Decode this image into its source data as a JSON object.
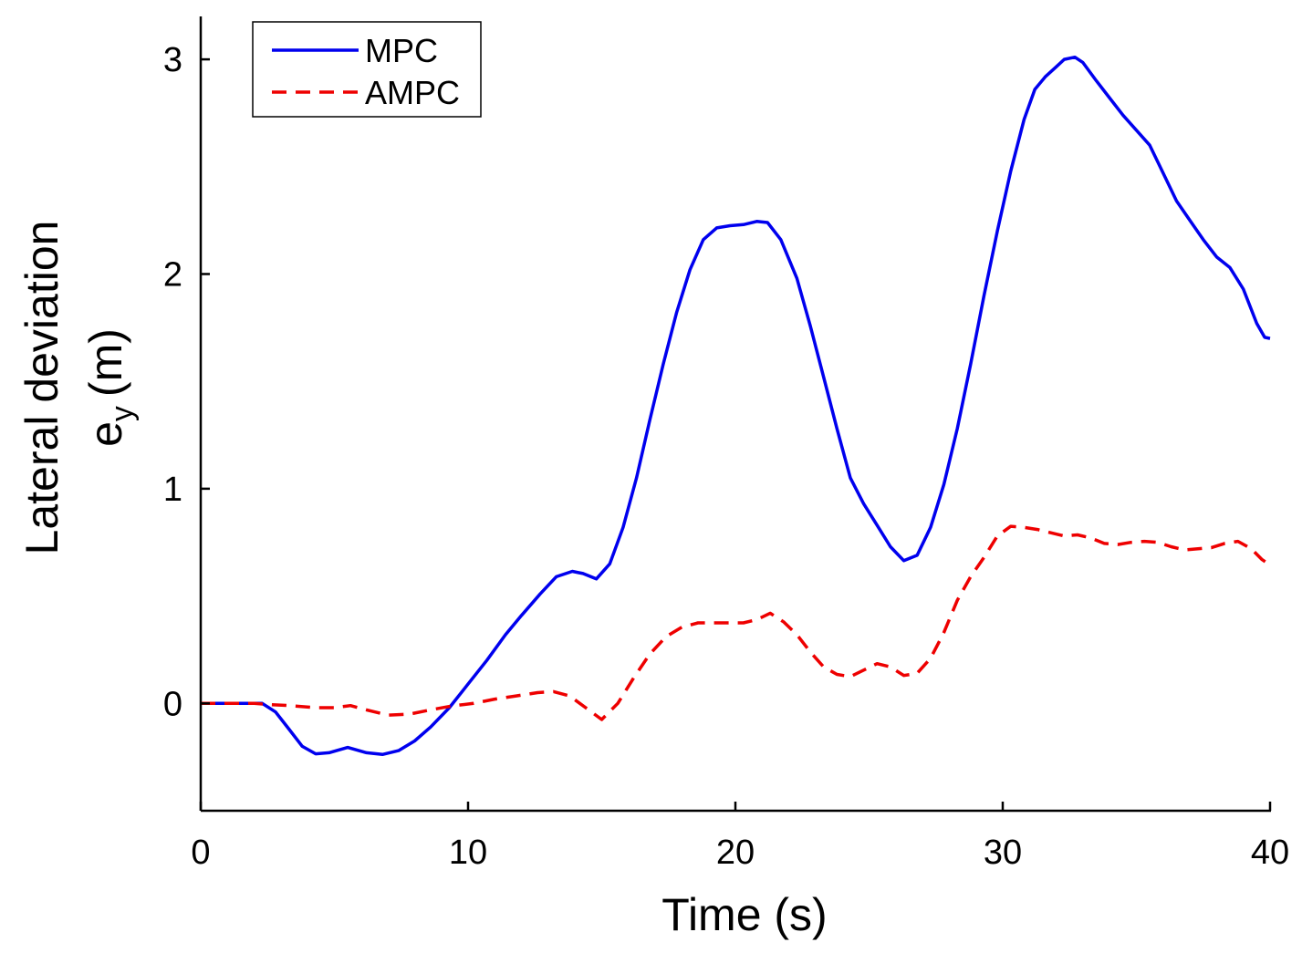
{
  "chart_data": {
    "type": "line",
    "title": "",
    "xlabel": "Time (s)",
    "ylabel_line1": "Lateral deviation",
    "ylabel_line2_main": "e",
    "ylabel_line2_sub": "y",
    "ylabel_line2_unit": "(m)",
    "xlim": [
      0,
      40
    ],
    "ylim": [
      -0.5,
      3.2
    ],
    "xticks": [
      0,
      10,
      20,
      30,
      40
    ],
    "xtick_labels": [
      "0",
      "10",
      "20",
      "30",
      "40"
    ],
    "yticks": [
      0,
      1,
      2,
      3
    ],
    "ytick_labels": [
      "0",
      "1",
      "2",
      "3"
    ],
    "grid": false,
    "legend_position": "top-left",
    "series": [
      {
        "name": "MPC",
        "color": "#0000ee",
        "style": "solid",
        "points": [
          [
            0,
            0
          ],
          [
            1,
            0
          ],
          [
            2,
            0
          ],
          [
            2.3,
            0
          ],
          [
            2.8,
            -0.04
          ],
          [
            3.3,
            -0.12
          ],
          [
            3.8,
            -0.2
          ],
          [
            4.3,
            -0.235
          ],
          [
            4.8,
            -0.23
          ],
          [
            5.5,
            -0.205
          ],
          [
            6.2,
            -0.23
          ],
          [
            6.8,
            -0.238
          ],
          [
            7.4,
            -0.22
          ],
          [
            8.0,
            -0.175
          ],
          [
            8.6,
            -0.11
          ],
          [
            9.3,
            -0.02
          ],
          [
            10.0,
            0.09
          ],
          [
            10.7,
            0.2
          ],
          [
            11.4,
            0.32
          ],
          [
            12.0,
            0.41
          ],
          [
            12.7,
            0.51
          ],
          [
            13.3,
            0.59
          ],
          [
            13.9,
            0.615
          ],
          [
            14.3,
            0.605
          ],
          [
            14.8,
            0.58
          ],
          [
            15.3,
            0.65
          ],
          [
            15.8,
            0.82
          ],
          [
            16.3,
            1.05
          ],
          [
            16.8,
            1.32
          ],
          [
            17.3,
            1.58
          ],
          [
            17.8,
            1.82
          ],
          [
            18.3,
            2.02
          ],
          [
            18.8,
            2.16
          ],
          [
            19.3,
            2.215
          ],
          [
            19.8,
            2.225
          ],
          [
            20.3,
            2.23
          ],
          [
            20.8,
            2.245
          ],
          [
            21.2,
            2.24
          ],
          [
            21.7,
            2.16
          ],
          [
            22.3,
            1.98
          ],
          [
            22.8,
            1.76
          ],
          [
            23.3,
            1.52
          ],
          [
            23.8,
            1.28
          ],
          [
            24.3,
            1.05
          ],
          [
            24.8,
            0.93
          ],
          [
            25.3,
            0.83
          ],
          [
            25.8,
            0.73
          ],
          [
            26.3,
            0.665
          ],
          [
            26.8,
            0.69
          ],
          [
            27.3,
            0.82
          ],
          [
            27.8,
            1.02
          ],
          [
            28.3,
            1.28
          ],
          [
            28.8,
            1.58
          ],
          [
            29.3,
            1.9
          ],
          [
            29.8,
            2.2
          ],
          [
            30.3,
            2.48
          ],
          [
            30.8,
            2.72
          ],
          [
            31.2,
            2.86
          ],
          [
            31.6,
            2.92
          ],
          [
            32.0,
            2.965
          ],
          [
            32.3,
            3.0
          ],
          [
            32.7,
            3.01
          ],
          [
            33.0,
            2.985
          ],
          [
            33.5,
            2.9
          ],
          [
            34.0,
            2.82
          ],
          [
            34.5,
            2.74
          ],
          [
            35.0,
            2.67
          ],
          [
            35.5,
            2.6
          ],
          [
            36.0,
            2.47
          ],
          [
            36.5,
            2.34
          ],
          [
            37.0,
            2.25
          ],
          [
            37.5,
            2.16
          ],
          [
            38.0,
            2.08
          ],
          [
            38.5,
            2.03
          ],
          [
            39.0,
            1.93
          ],
          [
            39.5,
            1.77
          ],
          [
            39.8,
            1.705
          ],
          [
            40,
            1.7
          ]
        ]
      },
      {
        "name": "AMPC",
        "color": "#ee0000",
        "style": "dashed",
        "points": [
          [
            0,
            0
          ],
          [
            1,
            0
          ],
          [
            2,
            0
          ],
          [
            2.5,
            -0.005
          ],
          [
            3.3,
            -0.01
          ],
          [
            4.3,
            -0.02
          ],
          [
            5.0,
            -0.02
          ],
          [
            5.6,
            -0.01
          ],
          [
            6.2,
            -0.03
          ],
          [
            7.0,
            -0.055
          ],
          [
            7.8,
            -0.05
          ],
          [
            8.6,
            -0.03
          ],
          [
            9.4,
            -0.012
          ],
          [
            10.2,
            0.0
          ],
          [
            11.0,
            0.02
          ],
          [
            11.8,
            0.035
          ],
          [
            12.6,
            0.05
          ],
          [
            13.2,
            0.055
          ],
          [
            13.8,
            0.035
          ],
          [
            14.4,
            -0.02
          ],
          [
            15.0,
            -0.075
          ],
          [
            15.6,
            0.0
          ],
          [
            16.2,
            0.12
          ],
          [
            16.8,
            0.23
          ],
          [
            17.4,
            0.31
          ],
          [
            18.0,
            0.355
          ],
          [
            18.6,
            0.375
          ],
          [
            19.2,
            0.375
          ],
          [
            19.8,
            0.375
          ],
          [
            20.3,
            0.375
          ],
          [
            20.8,
            0.39
          ],
          [
            21.3,
            0.42
          ],
          [
            21.8,
            0.38
          ],
          [
            22.3,
            0.32
          ],
          [
            22.8,
            0.24
          ],
          [
            23.3,
            0.17
          ],
          [
            23.8,
            0.135
          ],
          [
            24.3,
            0.125
          ],
          [
            24.8,
            0.155
          ],
          [
            25.3,
            0.185
          ],
          [
            25.8,
            0.17
          ],
          [
            26.3,
            0.13
          ],
          [
            26.8,
            0.14
          ],
          [
            27.3,
            0.21
          ],
          [
            27.8,
            0.33
          ],
          [
            28.3,
            0.48
          ],
          [
            28.8,
            0.59
          ],
          [
            29.3,
            0.68
          ],
          [
            29.8,
            0.78
          ],
          [
            30.3,
            0.825
          ],
          [
            30.8,
            0.82
          ],
          [
            31.3,
            0.81
          ],
          [
            31.8,
            0.795
          ],
          [
            32.3,
            0.78
          ],
          [
            32.8,
            0.785
          ],
          [
            33.3,
            0.77
          ],
          [
            33.8,
            0.745
          ],
          [
            34.3,
            0.74
          ],
          [
            34.8,
            0.75
          ],
          [
            35.3,
            0.755
          ],
          [
            35.8,
            0.75
          ],
          [
            36.3,
            0.73
          ],
          [
            36.8,
            0.715
          ],
          [
            37.3,
            0.72
          ],
          [
            37.8,
            0.725
          ],
          [
            38.3,
            0.745
          ],
          [
            38.8,
            0.755
          ],
          [
            39.3,
            0.72
          ],
          [
            39.7,
            0.67
          ],
          [
            40,
            0.645
          ]
        ]
      }
    ]
  }
}
